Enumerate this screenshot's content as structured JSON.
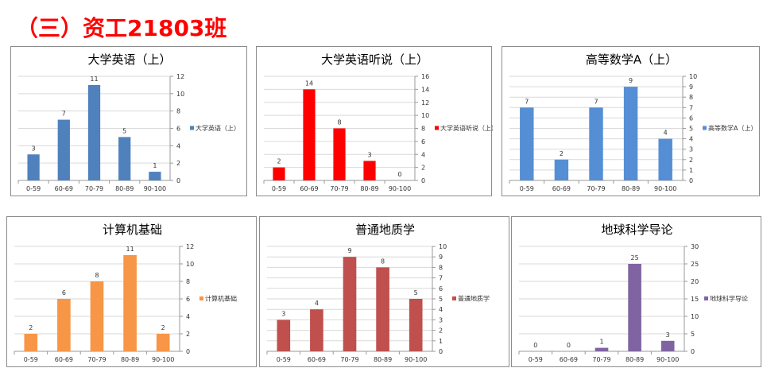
{
  "header": {
    "title": "（三）资工21803班"
  },
  "chart_data": [
    {
      "type": "bar",
      "title": "大学英语（上）",
      "categories": [
        "0-59",
        "60-69",
        "70-79",
        "80-89",
        "90-100"
      ],
      "series": [
        {
          "name": "大学英语（上）",
          "values": [
            3,
            7,
            11,
            5,
            1
          ]
        }
      ],
      "ylim": [
        0,
        12
      ],
      "ystep": 2,
      "yaxis": "right",
      "grid": true,
      "legend": "right",
      "color": "#4f81bd"
    },
    {
      "type": "bar",
      "title": "大学英语听说（上）",
      "categories": [
        "0-59",
        "60-69",
        "70-79",
        "80-89",
        "90-100"
      ],
      "series": [
        {
          "name": "大学英语听说（上）",
          "values": [
            2,
            14,
            8,
            3,
            0
          ]
        }
      ],
      "ylim": [
        0,
        16
      ],
      "ystep": 2,
      "yaxis": "right",
      "grid": true,
      "legend": "right",
      "color": "#ff0000"
    },
    {
      "type": "bar",
      "title": "高等数学A（上）",
      "categories": [
        "0-59",
        "60-69",
        "70-79",
        "80-89",
        "90-100"
      ],
      "series": [
        {
          "name": "高等数学A（上）",
          "values": [
            7,
            2,
            7,
            9,
            4
          ]
        }
      ],
      "ylim": [
        0,
        10
      ],
      "ystep": 1,
      "yaxis": "right",
      "grid": true,
      "legend": "right",
      "color": "#558ed5"
    },
    {
      "type": "bar",
      "title": "计算机基础",
      "categories": [
        "0-59",
        "60-69",
        "70-79",
        "80-89",
        "90-100"
      ],
      "series": [
        {
          "name": "计算机基础",
          "values": [
            2,
            6,
            8,
            11,
            2
          ]
        }
      ],
      "ylim": [
        0,
        12
      ],
      "ystep": 2,
      "yaxis": "right",
      "grid": true,
      "legend": "right",
      "color": "#f79646"
    },
    {
      "type": "bar",
      "title": "普通地质学",
      "categories": [
        "0-59",
        "60-69",
        "70-79",
        "80-89",
        "90-100"
      ],
      "series": [
        {
          "name": "普通地质学",
          "values": [
            3,
            4,
            9,
            8,
            5
          ]
        }
      ],
      "ylim": [
        0,
        10
      ],
      "ystep": 1,
      "yaxis": "right",
      "grid": true,
      "legend": "right",
      "color": "#c0504d"
    },
    {
      "type": "bar",
      "title": "地球科学导论",
      "categories": [
        "0-59",
        "60-69",
        "70-79",
        "80-89",
        "90-100"
      ],
      "series": [
        {
          "name": "地球科学导论",
          "values": [
            0,
            0,
            1,
            25,
            3
          ]
        }
      ],
      "ylim": [
        0,
        30
      ],
      "ystep": 5,
      "yaxis": "right",
      "grid": true,
      "legend": "right",
      "color": "#8064a2"
    }
  ]
}
